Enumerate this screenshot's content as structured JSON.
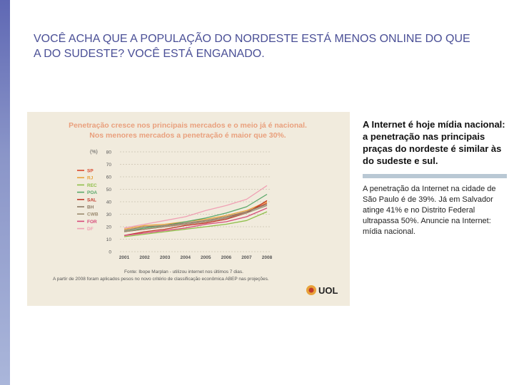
{
  "slide": {
    "title": "VOCÊ ACHA QUE A POPULAÇÃO DO NORDESTE ESTÁ MENOS ONLINE DO QUE A DO SUDESTE? VOCÊ ESTÁ ENGANADO.",
    "highlight": "A Internet é hoje mídia nacional: a penetração nas principais praças do nordeste é similar às do sudeste e sul.",
    "body": "A penetração da Internet na cidade de São Paulo é de 39%. Já em Salvador atinge 41% e no Distrito Federal ultrapassa 50%. Anuncie na Internet: mídia nacional.",
    "accent_color": "#4a4f96",
    "separator_color": "#b9c8d4"
  },
  "chart_data": {
    "type": "line",
    "title": "Penetração cresce nos principais mercados e o meio já é nacional.",
    "subtitle": "Nos menores mercados a penetração é maior que 30%.",
    "ylabel": "(%)",
    "xlabel": "",
    "ylim": [
      0,
      80
    ],
    "yticks": [
      0,
      10,
      20,
      30,
      40,
      50,
      60,
      70,
      80
    ],
    "grid": true,
    "legend_position": "left",
    "x": [
      "2001",
      "2002",
      "2003",
      "2004",
      "2005",
      "2006",
      "2007",
      "2008"
    ],
    "series": [
      {
        "name": "SP",
        "color": "#d9472b",
        "values": [
          16,
          18,
          20,
          22,
          24,
          27,
          32,
          39
        ]
      },
      {
        "name": "RJ",
        "color": "#e8a23a",
        "values": [
          18,
          21,
          22,
          24,
          26,
          29,
          33,
          40
        ]
      },
      {
        "name": "REC",
        "color": "#8fbf4a",
        "values": [
          12,
          14,
          16,
          18,
          20,
          22,
          25,
          32
        ]
      },
      {
        "name": "POA",
        "color": "#5aa86a",
        "values": [
          16,
          19,
          21,
          24,
          27,
          31,
          36,
          46
        ]
      },
      {
        "name": "SAL",
        "color": "#c0392b",
        "values": [
          13,
          16,
          18,
          21,
          23,
          26,
          31,
          41
        ]
      },
      {
        "name": "BH",
        "color": "#8c7a64",
        "values": [
          17,
          20,
          21,
          23,
          25,
          28,
          32,
          38
        ]
      },
      {
        "name": "CWB",
        "color": "#9b8a6f",
        "values": [
          16,
          18,
          20,
          22,
          24,
          27,
          31,
          37
        ]
      },
      {
        "name": "FOR",
        "color": "#d64a7a",
        "values": [
          13,
          15,
          17,
          19,
          22,
          24,
          28,
          35
        ]
      },
      {
        "name": "DF",
        "color": "#f0a0b4",
        "values": [
          19,
          22,
          25,
          28,
          33,
          37,
          42,
          53
        ]
      }
    ],
    "source": "Fonte: Ibope Marplan - utilizou internet nos últimos 7 dias.",
    "footnote": "A partir de 2008 foram aplicados pesos no novo critério de classificação econômica ABEP nas projeções.",
    "logo_text": "UOL"
  }
}
